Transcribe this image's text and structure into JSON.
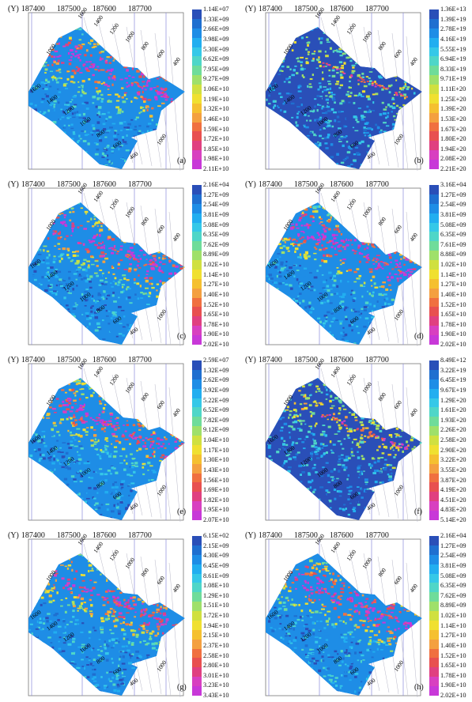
{
  "x_axis": {
    "unit": "(Y)",
    "ticks": [
      "187400",
      "187500",
      "187600",
      "187700"
    ]
  },
  "diagonal_labels": {
    "top": [
      "1600",
      "1400",
      "1200",
      "1000",
      "800",
      "600",
      "400"
    ],
    "left": [
      "1000"
    ],
    "bottom": [
      "1600",
      "1400",
      "1200",
      "1000",
      "800",
      "600",
      "400"
    ],
    "side": [
      "1000"
    ]
  },
  "colors": {
    "scale": [
      "#2a4fb8",
      "#1f6fd0",
      "#1e8de6",
      "#22aef0",
      "#35c8e8",
      "#4fd6c8",
      "#6fdc9a",
      "#9fe06a",
      "#d0e040",
      "#f0e030",
      "#f5c030",
      "#f4a040",
      "#f07040",
      "#e85050",
      "#e04080",
      "#d840c0",
      "#c838d8"
    ]
  },
  "panels": [
    {
      "id": "a",
      "label": "(a)",
      "intensity": 0.55,
      "scale": [
        "1.14E+07",
        "1.33E+09",
        "2.66E+09",
        "3.98E+09",
        "5.30E+09",
        "6.62E+09",
        "7.95E+09",
        "9.27E+09",
        "1.06E+10",
        "1.19E+10",
        "1.32E+10",
        "1.46E+10",
        "1.59E+10",
        "1.72E+10",
        "1.85E+10",
        "1.98E+10",
        "2.11E+10"
      ]
    },
    {
      "id": "b",
      "label": "(b)",
      "intensity": 0.2,
      "scale": [
        "1.36E+13",
        "1.39E+19",
        "2.78E+19",
        "4.16E+19",
        "5.55E+19",
        "6.94E+19",
        "8.33E+19",
        "9.71E+19",
        "1.11E+20",
        "1.25E+20",
        "1.39E+20",
        "1.53E+20",
        "1.67E+20",
        "1.80E+20",
        "1.94E+20",
        "2.08E+20",
        "2.21E+20"
      ]
    },
    {
      "id": "c",
      "label": "(c)",
      "intensity": 0.55,
      "scale": [
        "2.16E+04",
        "1.27E+09",
        "2.54E+09",
        "3.81E+09",
        "5.08E+09",
        "6.35E+09",
        "7.62E+09",
        "8.89E+09",
        "1.02E+10",
        "1.14E+10",
        "1.27E+10",
        "1.40E+10",
        "1.52E+10",
        "1.65E+10",
        "1.78E+10",
        "1.90E+10",
        "2.02E+10"
      ]
    },
    {
      "id": "d",
      "label": "(d)",
      "intensity": 0.6,
      "scale": [
        "3.16E+04",
        "1.27E+09",
        "2.54E+09",
        "3.81E+09",
        "5.08E+09",
        "6.35E+09",
        "7.61E+09",
        "8.88E+09",
        "1.02E+10",
        "1.14E+10",
        "1.27E+10",
        "1.40E+10",
        "1.52E+10",
        "1.65E+10",
        "1.78E+10",
        "1.90E+10",
        "2.02E+10"
      ]
    },
    {
      "id": "e",
      "label": "(e)",
      "intensity": 0.5,
      "scale": [
        "2.59E+07",
        "1.32E+09",
        "2.62E+09",
        "3.92E+09",
        "5.22E+09",
        "6.52E+09",
        "7.82E+09",
        "9.12E+09",
        "1.04E+10",
        "1.17E+10",
        "1.30E+10",
        "1.43E+10",
        "1.56E+10",
        "1.69E+10",
        "1.82E+10",
        "1.95E+10",
        "2.07E+10"
      ]
    },
    {
      "id": "f",
      "label": "(f)",
      "intensity": 0.25,
      "scale": [
        "8.49E+12",
        "3.22E+19",
        "6.45E+19",
        "9.67E+19",
        "1.29E+20",
        "1.61E+20",
        "1.93E+20",
        "2.26E+20",
        "2.58E+20",
        "2.90E+20",
        "3.22E+20",
        "3.55E+20",
        "3.87E+20",
        "4.19E+20",
        "4.51E+20",
        "4.83E+20",
        "5.14E+20"
      ]
    },
    {
      "id": "g",
      "label": "(g)",
      "intensity": 0.5,
      "scale": [
        "6.15E+02",
        "2.15E+09",
        "4.30E+09",
        "6.45E+09",
        "8.61E+09",
        "1.08E+10",
        "1.29E+10",
        "1.51E+10",
        "1.72E+10",
        "1.94E+10",
        "2.15E+10",
        "2.37E+10",
        "2.58E+10",
        "2.80E+10",
        "3.01E+10",
        "3.23E+10",
        "3.43E+10"
      ]
    },
    {
      "id": "h",
      "label": "(h)",
      "intensity": 0.55,
      "scale": [
        "2.16E+04",
        "1.27E+09",
        "2.54E+09",
        "3.81E+09",
        "5.08E+09",
        "6.35E+09",
        "7.62E+09",
        "8.89E+09",
        "1.02E+10",
        "1.14E+10",
        "1.27E+10",
        "1.40E+10",
        "1.52E+10",
        "1.65E+10",
        "1.78E+10",
        "1.90E+10",
        "2.02E+10"
      ]
    }
  ]
}
